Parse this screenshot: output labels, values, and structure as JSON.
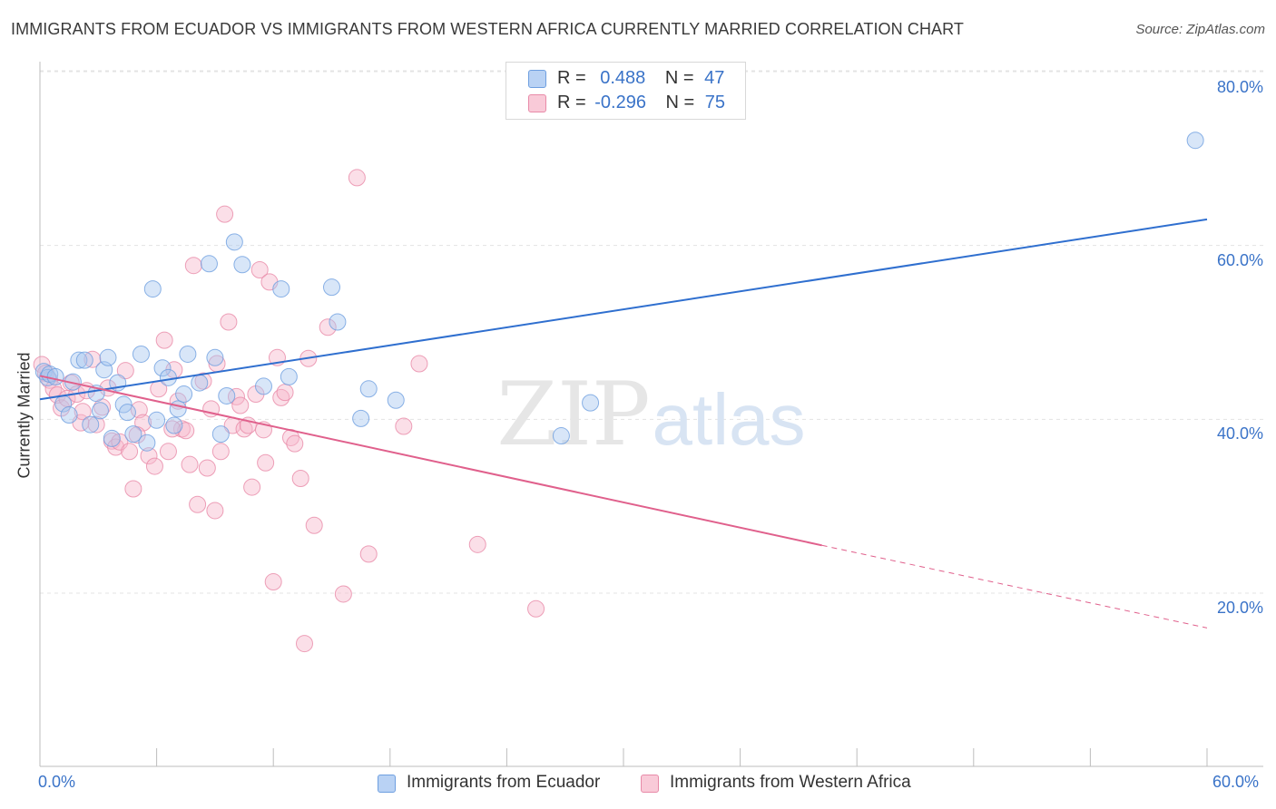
{
  "header": {
    "title": "IMMIGRANTS FROM ECUADOR VS IMMIGRANTS FROM WESTERN AFRICA CURRENTLY MARRIED CORRELATION CHART",
    "source": "Source: ZipAtlas.com"
  },
  "watermark": {
    "zip": "ZIP",
    "atlas": "atlas"
  },
  "legend": {
    "r_label": "R =",
    "n_label": "N =",
    "ecuador": {
      "r": "0.488",
      "n": "47"
    },
    "western_africa": {
      "r": "-0.296",
      "n": "75"
    }
  },
  "chart_data": {
    "type": "scatter",
    "title": "IMMIGRANTS FROM ECUADOR VS IMMIGRANTS FROM WESTERN AFRICA CURRENTLY MARRIED CORRELATION CHART",
    "xlabel": "",
    "ylabel": "Currently Married",
    "xlim": [
      0,
      60
    ],
    "ylim": [
      0,
      82
    ],
    "x_tick_labels": [
      "0.0%",
      "60.0%"
    ],
    "y_ticks": [
      20,
      40,
      60,
      80
    ],
    "y_tick_labels": [
      "20.0%",
      "40.0%",
      "60.0%",
      "80.0%"
    ],
    "grid": true,
    "legend_position": "top-center",
    "colors": {
      "ecuador": "#a9c8f0",
      "ecuador_line": "#2f6fcf",
      "western_africa": "#f6b7cb",
      "western_africa_line": "#e0608c"
    },
    "series": [
      {
        "name": "Immigrants from Ecuador",
        "trend": {
          "x": [
            0,
            60
          ],
          "y": [
            42.3,
            63.0
          ]
        },
        "points": [
          [
            0.2,
            45.5
          ],
          [
            0.4,
            44.8
          ],
          [
            0.5,
            45.2
          ],
          [
            0.8,
            44.9
          ],
          [
            1.2,
            41.8
          ],
          [
            1.5,
            40.5
          ],
          [
            1.7,
            44.3
          ],
          [
            2.0,
            46.8
          ],
          [
            2.3,
            46.8
          ],
          [
            2.6,
            39.4
          ],
          [
            2.9,
            43.0
          ],
          [
            3.1,
            41.0
          ],
          [
            3.3,
            45.7
          ],
          [
            3.5,
            47.1
          ],
          [
            3.7,
            37.8
          ],
          [
            4.0,
            44.2
          ],
          [
            4.3,
            41.7
          ],
          [
            4.5,
            40.8
          ],
          [
            4.8,
            38.3
          ],
          [
            5.2,
            47.5
          ],
          [
            5.5,
            37.3
          ],
          [
            5.8,
            55.0
          ],
          [
            6.0,
            39.9
          ],
          [
            6.3,
            45.9
          ],
          [
            6.6,
            44.8
          ],
          [
            6.9,
            39.3
          ],
          [
            7.1,
            41.2
          ],
          [
            7.4,
            42.9
          ],
          [
            7.6,
            47.5
          ],
          [
            8.2,
            44.2
          ],
          [
            8.7,
            57.9
          ],
          [
            9.0,
            47.1
          ],
          [
            9.3,
            38.3
          ],
          [
            9.6,
            42.7
          ],
          [
            10.0,
            60.4
          ],
          [
            10.4,
            57.8
          ],
          [
            11.5,
            43.8
          ],
          [
            12.4,
            55.0
          ],
          [
            12.8,
            44.9
          ],
          [
            15.0,
            55.2
          ],
          [
            15.3,
            51.2
          ],
          [
            16.5,
            40.1
          ],
          [
            16.9,
            43.5
          ],
          [
            18.3,
            42.2
          ],
          [
            26.8,
            38.1
          ],
          [
            28.3,
            41.9
          ],
          [
            59.4,
            72.1
          ]
        ]
      },
      {
        "name": "Immigrants from Western Africa",
        "trend": {
          "x": [
            0,
            40.2
          ],
          "y": [
            45.0,
            25.5
          ]
        },
        "trend_dashed": {
          "x": [
            40.2,
            60
          ],
          "y": [
            25.5,
            16.0
          ]
        },
        "points": [
          [
            0.1,
            46.3
          ],
          [
            0.3,
            45.3
          ],
          [
            0.5,
            44.5
          ],
          [
            0.7,
            43.5
          ],
          [
            0.9,
            42.8
          ],
          [
            1.1,
            41.3
          ],
          [
            1.4,
            42.4
          ],
          [
            1.6,
            44.2
          ],
          [
            1.9,
            42.9
          ],
          [
            2.1,
            39.6
          ],
          [
            2.4,
            43.3
          ],
          [
            2.7,
            46.9
          ],
          [
            2.9,
            39.4
          ],
          [
            3.2,
            41.4
          ],
          [
            3.5,
            43.6
          ],
          [
            3.7,
            37.5
          ],
          [
            3.9,
            36.8
          ],
          [
            4.1,
            37.4
          ],
          [
            4.4,
            45.6
          ],
          [
            4.6,
            36.3
          ],
          [
            4.8,
            32.0
          ],
          [
            5.1,
            41.1
          ],
          [
            5.3,
            39.6
          ],
          [
            5.6,
            35.8
          ],
          [
            5.9,
            34.6
          ],
          [
            6.1,
            43.5
          ],
          [
            6.4,
            49.1
          ],
          [
            6.6,
            36.3
          ],
          [
            6.9,
            45.7
          ],
          [
            7.1,
            42.1
          ],
          [
            7.3,
            38.9
          ],
          [
            7.5,
            38.7
          ],
          [
            7.7,
            34.8
          ],
          [
            7.9,
            57.7
          ],
          [
            8.1,
            30.2
          ],
          [
            8.4,
            44.4
          ],
          [
            8.6,
            34.4
          ],
          [
            8.8,
            41.2
          ],
          [
            9.1,
            46.4
          ],
          [
            9.3,
            36.3
          ],
          [
            9.5,
            63.6
          ],
          [
            9.7,
            51.2
          ],
          [
            9.9,
            39.3
          ],
          [
            10.1,
            42.6
          ],
          [
            10.3,
            41.6
          ],
          [
            10.5,
            38.9
          ],
          [
            10.7,
            39.3
          ],
          [
            10.9,
            32.2
          ],
          [
            11.1,
            42.9
          ],
          [
            11.3,
            57.2
          ],
          [
            11.5,
            38.8
          ],
          [
            11.8,
            55.8
          ],
          [
            12.0,
            21.3
          ],
          [
            12.2,
            47.1
          ],
          [
            12.4,
            42.5
          ],
          [
            12.6,
            43.1
          ],
          [
            12.9,
            37.9
          ],
          [
            13.1,
            37.2
          ],
          [
            13.4,
            33.2
          ],
          [
            13.6,
            14.2
          ],
          [
            14.1,
            27.8
          ],
          [
            14.8,
            50.6
          ],
          [
            15.6,
            19.9
          ],
          [
            16.3,
            67.8
          ],
          [
            16.9,
            24.5
          ],
          [
            18.7,
            39.2
          ],
          [
            19.5,
            46.4
          ],
          [
            22.5,
            25.6
          ],
          [
            25.5,
            18.2
          ],
          [
            2.2,
            40.9
          ],
          [
            5.0,
            38.2
          ],
          [
            6.8,
            38.9
          ],
          [
            11.6,
            35.0
          ],
          [
            13.8,
            47.0
          ],
          [
            9.0,
            29.5
          ]
        ]
      }
    ]
  }
}
